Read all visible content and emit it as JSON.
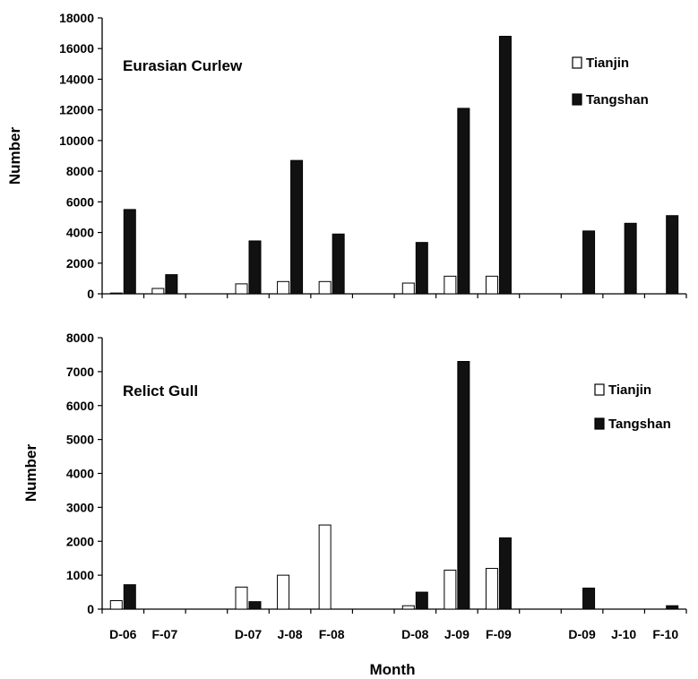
{
  "chart_data": [
    {
      "type": "bar",
      "title": "Eurasian Curlew",
      "ylabel": "Number",
      "xlabel": "",
      "ylim": [
        0,
        18000
      ],
      "yticks": [
        0,
        2000,
        4000,
        6000,
        8000,
        10000,
        12000,
        14000,
        16000,
        18000
      ],
      "categories": [
        "D-06",
        "F-07",
        "",
        "D-07",
        "J-08",
        "F-08",
        "",
        "D-08",
        "J-09",
        "F-09",
        "",
        "D-09",
        "J-10",
        "F-10"
      ],
      "series": [
        {
          "name": "Tianjin",
          "values": [
            50,
            350,
            null,
            650,
            800,
            800,
            null,
            700,
            1150,
            1150,
            null,
            0,
            0,
            0
          ]
        },
        {
          "name": "Tangshan",
          "values": [
            5500,
            1250,
            null,
            3450,
            8700,
            3900,
            null,
            3350,
            12100,
            16800,
            null,
            4100,
            4600,
            5100
          ]
        }
      ],
      "legend": "top-right",
      "grid": false
    },
    {
      "type": "bar",
      "title": "Relict Gull",
      "ylabel": "Number",
      "xlabel": "Month",
      "ylim": [
        0,
        8000
      ],
      "yticks": [
        0,
        1000,
        2000,
        3000,
        4000,
        5000,
        6000,
        7000,
        8000
      ],
      "categories": [
        "D-06",
        "F-07",
        "",
        "D-07",
        "J-08",
        "F-08",
        "",
        "D-08",
        "J-09",
        "F-09",
        "",
        "D-09",
        "J-10",
        "F-10"
      ],
      "series": [
        {
          "name": "Tianjin",
          "values": [
            250,
            0,
            null,
            650,
            1000,
            2480,
            null,
            100,
            1150,
            1200,
            null,
            0,
            0,
            0
          ]
        },
        {
          "name": "Tangshan",
          "values": [
            720,
            0,
            null,
            220,
            0,
            0,
            null,
            500,
            7300,
            2100,
            null,
            620,
            0,
            100
          ]
        }
      ],
      "legend": "top-right",
      "grid": false
    }
  ],
  "colors": {
    "Tianjin": "#ffffff",
    "Tangshan": "#111111",
    "axis": "#000000"
  }
}
